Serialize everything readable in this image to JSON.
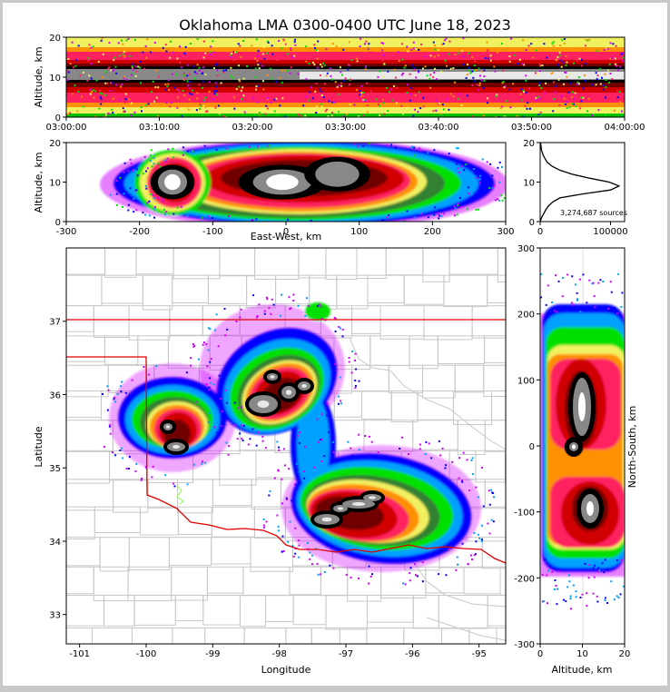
{
  "title": "Oklahoma LMA 0300-0400 UTC June 18, 2023",
  "sources_label": "3,274,687 sources",
  "colors": {
    "border": "#c8c8c8",
    "state_line": "#e00000",
    "county_line": "#c8c8c8",
    "density_scale": [
      "#d000ff",
      "#0000ff",
      "#00a0ff",
      "#00e000",
      "#308030",
      "#f0f060",
      "#ff9000",
      "#ff2060",
      "#d00000",
      "#700000",
      "#000000",
      "#888888",
      "#ffffff"
    ]
  },
  "chart_data": [
    {
      "id": "time-altitude",
      "type": "heatmap",
      "title": "Oklahoma LMA 0300-0400 UTC June 18, 2023",
      "xlabel": "",
      "ylabel": "Altitude, km",
      "xticks": [
        "03:00:00",
        "03:10:00",
        "03:20:00",
        "03:30:00",
        "03:40:00",
        "03:50:00",
        "04:00:00"
      ],
      "yticks": [
        0,
        10,
        20
      ],
      "xlim": [
        "03:00:00",
        "04:00:00"
      ],
      "ylim": [
        0,
        20
      ],
      "density_band_km": {
        "core": [
          8,
          12
        ],
        "extent": [
          1,
          20
        ]
      }
    },
    {
      "id": "ew-altitude",
      "type": "heatmap",
      "xlabel": "East-West, km",
      "ylabel": "Altitude, km",
      "xticks": [
        -300,
        -200,
        -100,
        0,
        100,
        200,
        300
      ],
      "yticks": [
        0,
        10,
        20
      ],
      "xlim": [
        -300,
        300
      ],
      "ylim": [
        0,
        20
      ],
      "cores_km": [
        {
          "x": -155,
          "z": 10,
          "rx": 20,
          "rz": 2
        },
        {
          "x": -5,
          "z": 10,
          "rx": 40,
          "rz": 2
        },
        {
          "x": 70,
          "z": 12,
          "rx": 30,
          "rz": 2
        }
      ]
    },
    {
      "id": "altitude-histogram",
      "type": "line",
      "xlabel": "",
      "ylabel": "",
      "xticks": [
        0,
        100000
      ],
      "yticks": [
        0,
        10,
        20
      ],
      "xlim": [
        0,
        120000
      ],
      "ylim": [
        0,
        20
      ],
      "x": [
        0,
        2000,
        5000,
        8000,
        12000,
        18000,
        28000,
        60000,
        100000,
        112000,
        98000,
        70000,
        45000,
        28000,
        17000,
        10000,
        5000,
        2000,
        500
      ],
      "y": [
        0,
        1,
        2,
        3,
        4,
        5,
        6,
        7,
        8,
        9,
        10,
        11,
        12,
        13,
        14,
        15,
        16.5,
        18,
        20
      ]
    },
    {
      "id": "plan-view",
      "type": "heatmap",
      "xlabel": "Longitude",
      "ylabel": "Latitude",
      "xticks": [
        -101,
        -100,
        -99,
        -98,
        -97,
        -96,
        -95
      ],
      "yticks": [
        33,
        34,
        35,
        36,
        37
      ],
      "xlim": [
        -101.2,
        -94.6
      ],
      "ylim": [
        32.6,
        38.0
      ],
      "cells": [
        {
          "lon": -99.7,
          "lat": 35.5,
          "peak_lat": 35.25
        },
        {
          "lon": -98.1,
          "lat": 35.9
        },
        {
          "lon": -96.6,
          "lat": 34.4
        }
      ]
    },
    {
      "id": "ns-altitude",
      "type": "heatmap",
      "xlabel": "Altitude, km",
      "ylabel": "North-South, km",
      "xticks": [
        0,
        10,
        20
      ],
      "yticks": [
        -300,
        -200,
        -100,
        0,
        100,
        200,
        300
      ],
      "xlim": [
        0,
        20
      ],
      "ylim": [
        -300,
        300
      ]
    }
  ]
}
